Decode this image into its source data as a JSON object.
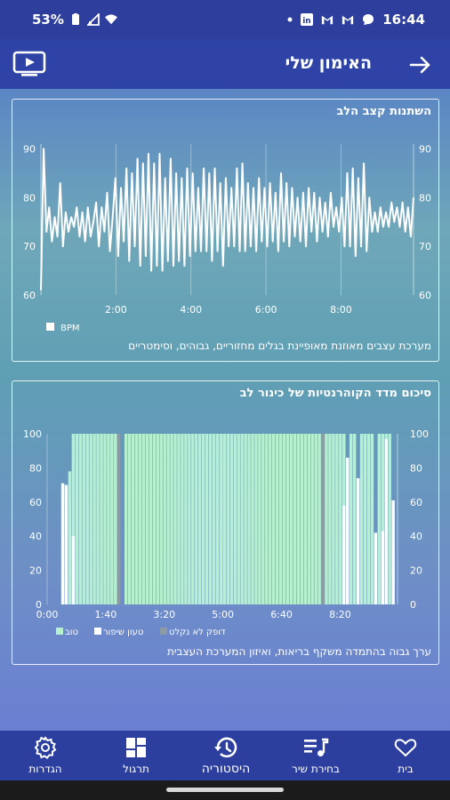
{
  "status_bar": {
    "battery": "53%",
    "time": "16:44",
    "icons": [
      "battery-icon",
      "signal-icon",
      "wifi-icon",
      "dot-icon",
      "linkedin-icon",
      "gmail-icon",
      "gmail-icon",
      "chat-icon"
    ]
  },
  "app_bar": {
    "title": "האימון שלי",
    "back_icon": "arrow-right-icon",
    "cast_icon": "tv-play-icon"
  },
  "heart_card": {
    "title": "השתנות קצב הלב",
    "description": "מערכת עצבים מאוזנת מאופיינת בגלים מחזוריים, גבוהים, וסימטריים",
    "legend": "BPM",
    "line_color": "#ffffff"
  },
  "coherence_card": {
    "title": "סיכום מדד הקוהרנטיות של כינור לב",
    "description": "ערך גבוה בהתמדה משקף בריאות, ואיזון המערכת העצבית",
    "legend": [
      {
        "label": "טוב",
        "color": "#b5f0cf"
      },
      {
        "label": "טעון שיפור",
        "color": "#ffffff"
      },
      {
        "label": "דופק לא נקלט",
        "color": "#8c9aa4"
      }
    ]
  },
  "chart_data": [
    {
      "type": "line",
      "title": "השתנות קצב הלב",
      "xlabel": "",
      "ylabel": "",
      "x_ticks": [
        "2:00",
        "4:00",
        "6:00",
        "8:00"
      ],
      "y_ticks": [
        60,
        70,
        80,
        90
      ],
      "xlim": [
        0,
        596
      ],
      "ylim": [
        60,
        91
      ],
      "series": [
        {
          "name": "BPM",
          "values": [
            61,
            90,
            73,
            78,
            71,
            76,
            72,
            83,
            70,
            77,
            73,
            76,
            74,
            78,
            72,
            77,
            71,
            78,
            72,
            75,
            79,
            70,
            78,
            73,
            81,
            69,
            76,
            84,
            68,
            82,
            71,
            86,
            67,
            85,
            70,
            88,
            66,
            87,
            68,
            89,
            65,
            87,
            66,
            89,
            65,
            84,
            67,
            88,
            66,
            85,
            67,
            84,
            66,
            86,
            68,
            85,
            69,
            82,
            69,
            86,
            69,
            85,
            67,
            86,
            69,
            83,
            66,
            84,
            70,
            82,
            70,
            86,
            69,
            87,
            69,
            83,
            70,
            82,
            69,
            84,
            71,
            82,
            70,
            83,
            71,
            81,
            69,
            85,
            71,
            83,
            70,
            82,
            72,
            80,
            71,
            81,
            70,
            82,
            73,
            81,
            71,
            80,
            73,
            79,
            72,
            81,
            74,
            78,
            73,
            80,
            70,
            85,
            70,
            86,
            68,
            84,
            70,
            87,
            69,
            80,
            73,
            77,
            73,
            78,
            74,
            77,
            74,
            79,
            75,
            78,
            74,
            79,
            73,
            78,
            72,
            80
          ]
        }
      ],
      "grid": "vertical"
    },
    {
      "type": "bar",
      "title": "סיכום מדד הקוהרנטיות של כינור לב",
      "xlabel": "",
      "ylabel": "",
      "x_ticks": [
        "0:00",
        "1:40",
        "3:20",
        "5:00",
        "6:40",
        "8:20"
      ],
      "y_ticks": [
        0,
        20,
        40,
        60,
        80,
        100
      ],
      "xlim": [
        0,
        598
      ],
      "ylim": [
        0,
        100
      ],
      "bar_width_s": 6,
      "series": [
        {
          "name": "טוב",
          "x": [
            36,
            42,
            48,
            54,
            60,
            66,
            72,
            78,
            84,
            90,
            96,
            102,
            108,
            114,
            132,
            138,
            144,
            150,
            156,
            162,
            168,
            174,
            180,
            186,
            192,
            198,
            204,
            210,
            216,
            222,
            228,
            234,
            240,
            246,
            252,
            258,
            264,
            270,
            276,
            282,
            288,
            294,
            300,
            306,
            312,
            318,
            324,
            330,
            336,
            342,
            348,
            354,
            360,
            366,
            372,
            378,
            384,
            390,
            396,
            402,
            408,
            414,
            420,
            426,
            432,
            438,
            444,
            450,
            456,
            462,
            468,
            474,
            480,
            486,
            492,
            498,
            504,
            516,
            522,
            534,
            540,
            546,
            552,
            564,
            570,
            576,
            582
          ],
          "values": [
            78,
            100,
            100,
            100,
            100,
            100,
            100,
            100,
            100,
            100,
            100,
            100,
            100,
            100,
            100,
            100,
            100,
            100,
            100,
            100,
            100,
            100,
            100,
            100,
            100,
            100,
            100,
            100,
            100,
            100,
            100,
            100,
            100,
            100,
            100,
            100,
            100,
            100,
            100,
            100,
            100,
            100,
            100,
            100,
            100,
            100,
            100,
            100,
            100,
            100,
            100,
            100,
            100,
            100,
            100,
            100,
            100,
            100,
            100,
            100,
            100,
            100,
            100,
            100,
            100,
            100,
            100,
            100,
            100,
            100,
            100,
            100,
            100,
            100,
            100,
            100,
            100,
            100,
            100,
            100,
            100,
            100,
            100,
            100,
            100,
            100,
            100
          ]
        },
        {
          "name": "טעון שיפור",
          "x": [
            24,
            30,
            42,
            504,
            510,
            528,
            558,
            570,
            576,
            588
          ],
          "values": [
            71,
            70,
            40,
            58,
            86,
            74,
            42,
            43,
            97,
            61
          ]
        },
        {
          "name": "דופק לא נקלט",
          "x": [
            120,
            468
          ],
          "values": [
            100,
            100
          ]
        }
      ],
      "grid": "vertical"
    }
  ],
  "bottom_nav": {
    "items": [
      {
        "label": "הגדרות",
        "icon": "gear-icon"
      },
      {
        "label": "תרגול",
        "icon": "grid-icon"
      },
      {
        "label": "היסטוריה",
        "icon": "history-icon"
      },
      {
        "label": "בחירת שיר",
        "icon": "music-list-icon"
      },
      {
        "label": "בית",
        "icon": "heart-icon"
      }
    ]
  }
}
